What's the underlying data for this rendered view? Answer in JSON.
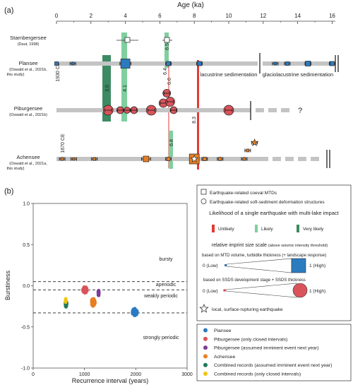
{
  "colors": {
    "plansee": "#2b7bbf",
    "piburgersee": "#d9545a",
    "piburgersee_open": "#7d3c98",
    "achensee": "#e67e22",
    "combined_assumed": "#1e7a5a",
    "combined_closed": "#f1c40f",
    "unlikely": "#e53935",
    "likely": "#7fcf9f",
    "very_likely": "#3d8a63",
    "grey_bar": "#c4c4c4"
  },
  "panel_a": {
    "label": "(a)",
    "axis_title": "Age (ka)",
    "ticks": [
      "0",
      "2",
      "4",
      "6",
      "8",
      "10",
      "12",
      "14",
      "16"
    ],
    "lakes": [
      {
        "name": "Starnbergersee",
        "ref": "(Daut, 1998)"
      },
      {
        "name": "Plansee",
        "ref": "(Oswald et al., 2021b,",
        "ref2": "this study)"
      },
      {
        "name": "Piburgersee",
        "ref": "(Oswald et al., 2021b)"
      },
      {
        "name": "Achensee",
        "ref": "(Oswald et al., 2021a,",
        "ref2": "this study)"
      }
    ],
    "annotations": {
      "ce1930": "1930 CE",
      "ce1670": "1670 CE",
      "lacustrine": "lacustrine sedimentation",
      "glaciolacustrine": "glaciolacustrine sedimentation",
      "question": "?",
      "e30": "3.0",
      "e41": "4.1",
      "e65": "6.5",
      "e64": "6.4",
      "e66": "6.6",
      "e68": "6.8",
      "e83": "8.3"
    }
  },
  "panel_b": {
    "label": "(b)",
    "regimes": {
      "bursty": "bursty",
      "aperiodic": "aperiodic",
      "weakly": "weakly periodic",
      "strongly": "strongly periodic"
    }
  },
  "chart_data": [
    {
      "type": "scatter",
      "title": "",
      "xlabel": "Age (ka)",
      "xlim": [
        0,
        16.5
      ],
      "series": [
        {
          "name": "Plansee",
          "x": [
            0,
            0.95,
            4.0,
            6.5,
            8.3,
            12.7,
            13.4,
            14.6,
            16.0
          ]
        },
        {
          "name": "Piburgersee",
          "x": [
            3.0,
            3.7,
            4.1,
            4.5,
            5.5,
            6.2,
            6.4,
            6.6,
            6.8,
            10.0
          ]
        },
        {
          "name": "Achensee",
          "x": [
            0.33,
            1.0,
            2.2,
            5.2,
            6.5,
            8.0,
            8.6,
            9.5,
            10.9,
            11.1,
            11.5
          ]
        },
        {
          "name": "Starnbergersee",
          "x": [
            4.1,
            6.5
          ]
        }
      ]
    },
    {
      "type": "scatter",
      "title": "",
      "xlabel": "Recurrence interval (years)",
      "ylabel": "Burstiness",
      "xlim": [
        0,
        3000
      ],
      "ylim": [
        -1,
        1
      ],
      "x_ticks": [
        "0",
        "1000",
        "2000",
        "3000"
      ],
      "y_ticks": [
        "1.0",
        "0.5",
        "0.0",
        "-0.5",
        "-1.0"
      ],
      "thresholds": [
        0.05,
        -0.05,
        -0.33
      ],
      "series": [
        {
          "name": "Plansee",
          "center": [
            1980,
            -0.32
          ]
        },
        {
          "name": "Piburgersee (only closed intervals)",
          "center": [
            1010,
            -0.05
          ]
        },
        {
          "name": "Piburgersee (assumed imminent event next year)",
          "center": [
            1275,
            -0.09
          ]
        },
        {
          "name": "Achensee",
          "center": [
            1170,
            -0.2
          ]
        },
        {
          "name": "Combined records (assumed imminent event next year)",
          "center": [
            640,
            -0.22
          ]
        },
        {
          "name": "Combined records (only closed intervals)",
          "center": [
            635,
            -0.18
          ]
        }
      ]
    }
  ],
  "legend_box1": {
    "mtd": "Earthquake-related coeval MTDs",
    "ssds": "Earthquake-related soft-sediment deformation structures",
    "likelihood_title": "Likelihood of a single earthquake with multi-lake impact",
    "unlikely": "Unlikely",
    "likely": "Likely",
    "very_likely": "Very likely",
    "scale_title": "relative imprint size scale",
    "scale_sub": "(above seismic intensity threshold)",
    "mtd_basis": "based on MTD volume, turbidite thickness (+ landscape response)",
    "ssds_basis": "based on SSDS development stage + SSDS thickness",
    "low": "0 (Low)",
    "high": "1 (High)",
    "star": "local, surface-rupturing earthquake"
  },
  "legend_box2": {
    "items": [
      "Plansee",
      "Piburgersee (only closed intervals)",
      "Piburgersee (assumed imminent event next year)",
      "Achensee",
      "Combined records (assumed imminent event next year)",
      "Combined records (only closed intervals)"
    ]
  }
}
